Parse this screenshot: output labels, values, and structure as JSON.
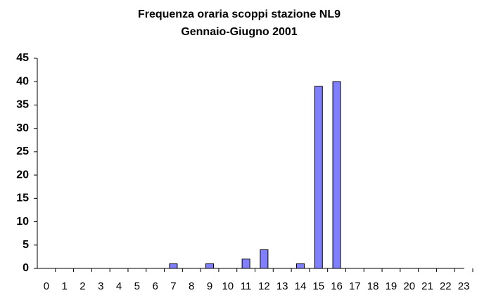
{
  "chart_data": {
    "type": "bar",
    "title": "Frequenza oraria scoppi stazione NL9",
    "subtitle": "Gennaio-Giugno 2001",
    "categories": [
      "0",
      "1",
      "2",
      "3",
      "4",
      "5",
      "6",
      "7",
      "8",
      "9",
      "10",
      "11",
      "12",
      "13",
      "14",
      "15",
      "16",
      "17",
      "18",
      "19",
      "20",
      "21",
      "22",
      "23"
    ],
    "values": [
      0,
      0,
      0,
      0,
      0,
      0,
      0,
      1,
      0,
      1,
      0,
      2,
      4,
      0,
      1,
      39,
      40,
      0,
      0,
      0,
      0,
      0,
      0,
      0
    ],
    "color": "#8080ff",
    "ylim": [
      0,
      45
    ],
    "yticks": [
      0,
      5,
      10,
      15,
      20,
      25,
      30,
      35,
      40,
      45
    ],
    "grid": false
  }
}
